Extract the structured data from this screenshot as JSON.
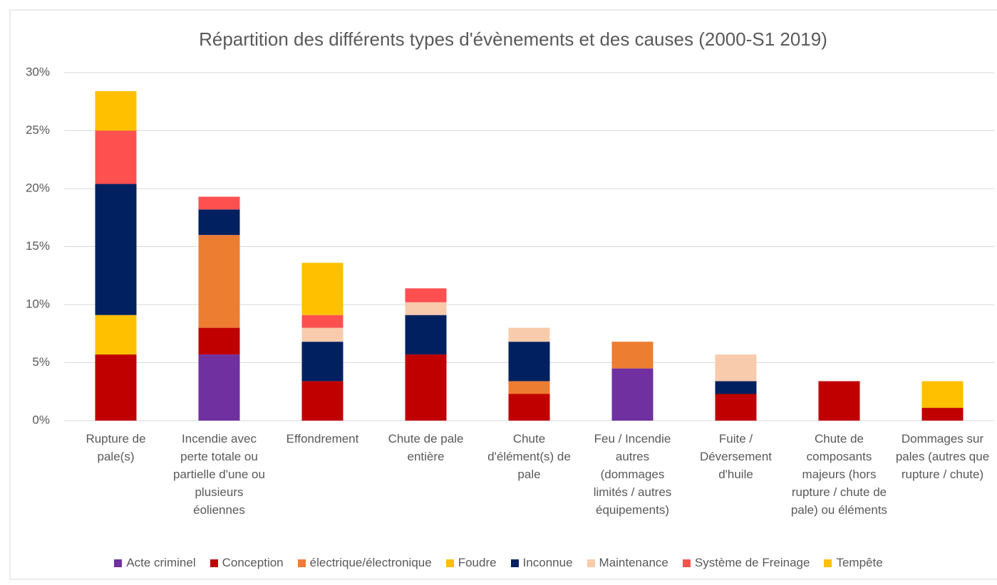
{
  "chart_data": {
    "type": "stacked_bar",
    "title": "Répartition des différents types d'évènements et des causes (2000-S1 2019)",
    "categories": [
      "Rupture de pale(s)",
      "Incendie avec perte totale ou partielle d'une ou plusieurs éoliennes",
      "Effondrement",
      "Chute de pale entière",
      "Chute d'élément(s) de pale",
      "Feu / Incendie autres (dommages limités / autres équipements)",
      "Fuite / Déversement d'huile",
      "Chute de composants majeurs (hors rupture / chute de pale) ou éléments",
      "Dommages sur pales (autres que rupture / chute)"
    ],
    "series": [
      {
        "name": "Acte criminel",
        "color": "#7030a0",
        "values": [
          null,
          5.7,
          null,
          null,
          null,
          4.5,
          null,
          null,
          null
        ]
      },
      {
        "name": "Conception",
        "color": "#c00000",
        "values": [
          5.7,
          2.3,
          3.4,
          5.7,
          2.3,
          null,
          2.3,
          3.4,
          1.1
        ]
      },
      {
        "name": "électrique/électronique",
        "color": "#ed7d31",
        "values": [
          null,
          8.0,
          null,
          null,
          1.1,
          2.3,
          null,
          null,
          null
        ]
      },
      {
        "name": "Foudre",
        "color": "#ffc000",
        "values": [
          3.4,
          null,
          null,
          null,
          null,
          null,
          null,
          null,
          null
        ]
      },
      {
        "name": "Inconnue",
        "color": "#002060",
        "values": [
          11.3,
          2.2,
          3.4,
          3.4,
          3.4,
          null,
          1.1,
          null,
          null
        ]
      },
      {
        "name": "Maintenance",
        "color": "#f8cbad",
        "values": [
          null,
          null,
          1.2,
          1.1,
          1.2,
          null,
          2.3,
          null,
          null
        ]
      },
      {
        "name": "Système de Freinage",
        "color": "#ff5050",
        "values": [
          4.6,
          1.1,
          1.1,
          1.2,
          null,
          null,
          null,
          null,
          null
        ]
      },
      {
        "name": "Tempête",
        "color": "#ffc000",
        "values": [
          3.4,
          null,
          4.5,
          null,
          null,
          null,
          null,
          null,
          2.3
        ]
      }
    ],
    "ylim": [
      0,
      30
    ],
    "yticks": [
      {
        "value": 0,
        "label": "0%"
      },
      {
        "value": 5,
        "label": "5%"
      },
      {
        "value": 10,
        "label": "10%"
      },
      {
        "value": 15,
        "label": "15%"
      },
      {
        "value": 20,
        "label": "20%"
      },
      {
        "value": 25,
        "label": "25%"
      },
      {
        "value": 30,
        "label": "30%"
      }
    ],
    "grid": true,
    "legend": "bottom"
  }
}
